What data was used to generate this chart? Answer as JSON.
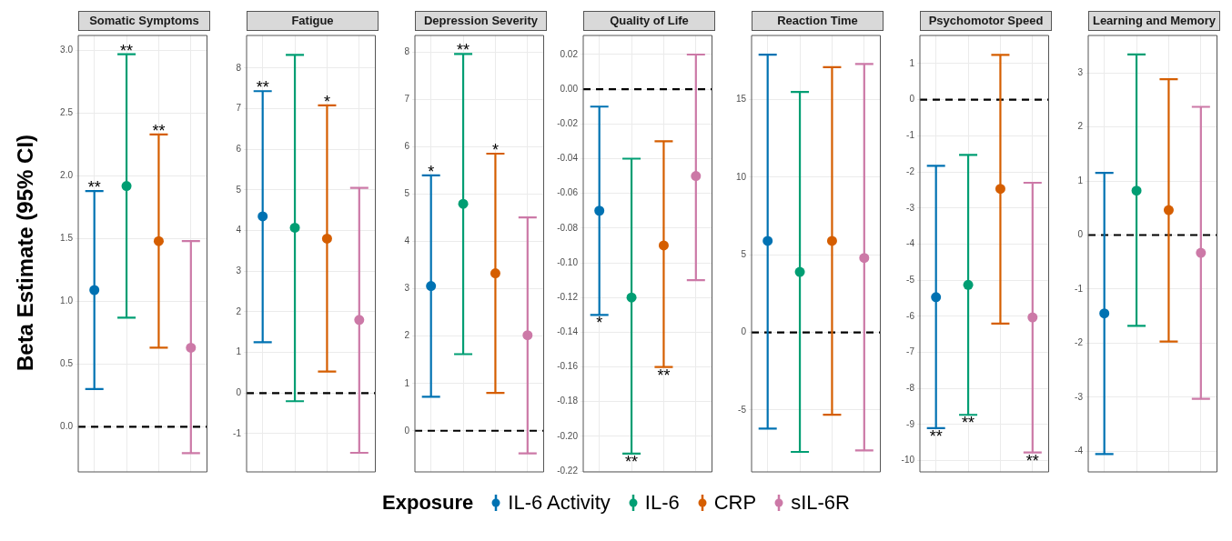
{
  "chart_data": [
    {
      "type": "scatter",
      "title": "Somatic Symptoms",
      "ylabel": "Beta Estimate (95% CI)",
      "legend": "bottom",
      "legend_title": "Exposure",
      "categories": [
        null,
        null,
        null,
        null
      ],
      "ylim": [
        -0.36,
        3.12
      ],
      "annotations": [
        {
          "text": "**",
          "y": 1.88
        },
        {
          "text": "**",
          "y": 2.97
        },
        {
          "text": "**",
          "y": 2.33
        }
      ],
      "yticks": [
        {
          "value": 0,
          "label": "0.0"
        },
        {
          "value": 0.5,
          "label": "0.5"
        },
        {
          "value": 1,
          "label": "1.0"
        },
        {
          "value": 1.5,
          "label": "1.5"
        },
        {
          "value": 2,
          "label": "2.0"
        },
        {
          "value": 2.5,
          "label": "2.5"
        },
        {
          "value": 3,
          "label": "3.0"
        }
      ],
      "grid": true,
      "marker": "circle",
      "ref_lines": [
        {
          "axis": "y",
          "value": 0,
          "color": "#000000",
          "line_style": "dashed"
        }
      ],
      "series": [
        {
          "name": "IL-6 Activity",
          "color": "#0072b2",
          "values": [
            1.09,
            null,
            null,
            null
          ],
          "errors": [
            [
              0.3,
              1.88
            ],
            null,
            null,
            null
          ]
        },
        {
          "name": "IL-6",
          "color": "#009e73",
          "values": [
            null,
            1.92,
            null,
            null
          ],
          "errors": [
            null,
            [
              0.87,
              2.97
            ],
            null,
            null
          ]
        },
        {
          "name": "CRP",
          "color": "#d55e00",
          "values": [
            null,
            null,
            1.48,
            null
          ],
          "errors": [
            null,
            null,
            [
              0.63,
              2.33
            ],
            null
          ]
        },
        {
          "name": "sIL-6R",
          "color": "#cc79a7",
          "values": [
            null,
            null,
            null,
            0.63
          ],
          "errors": [
            null,
            null,
            null,
            [
              -0.21,
              1.48
            ]
          ]
        }
      ]
    },
    {
      "type": "scatter",
      "title": "Fatigue",
      "categories": [
        null,
        null,
        null,
        null
      ],
      "ylim": [
        -1.94,
        8.8
      ],
      "yticks": [
        -1,
        0,
        1,
        2,
        3,
        4,
        5,
        6,
        7,
        8
      ],
      "annotations": [
        {
          "text": "**",
          "y": 7.43
        },
        {
          "text": "*",
          "y": 7.08
        }
      ],
      "grid": true,
      "marker": "circle",
      "ref_lines": [
        {
          "axis": "y",
          "value": 0,
          "color": "#000000",
          "line_style": "dashed"
        }
      ],
      "series": [
        {
          "color": "#0072b2",
          "values": [
            4.35,
            null,
            null,
            null
          ],
          "errors": [
            [
              1.25,
              7.43
            ],
            null,
            null,
            null
          ]
        },
        {
          "color": "#009e73",
          "values": [
            null,
            4.07,
            null,
            null
          ],
          "errors": [
            null,
            [
              -0.2,
              8.32
            ],
            null,
            null
          ]
        },
        {
          "color": "#d55e00",
          "values": [
            null,
            null,
            3.8,
            null
          ],
          "errors": [
            null,
            null,
            [
              0.53,
              7.08
            ],
            null
          ]
        },
        {
          "color": "#cc79a7",
          "values": [
            null,
            null,
            null,
            1.8
          ],
          "errors": [
            null,
            null,
            null,
            [
              -1.47,
              5.05
            ]
          ]
        }
      ]
    },
    {
      "type": "scatter",
      "title": "Depression Severity",
      "categories": [
        null,
        null,
        null,
        null
      ],
      "ylim": [
        -0.87,
        8.36
      ],
      "yticks": [
        0,
        1,
        2,
        3,
        4,
        5,
        6,
        7,
        8
      ],
      "annotations": [
        {
          "text": "*",
          "y": 5.4
        },
        {
          "text": "**",
          "y": 7.97
        },
        {
          "text": "*",
          "y": 5.86
        }
      ],
      "grid": true,
      "marker": "circle",
      "ref_lines": [
        {
          "axis": "y",
          "value": 0,
          "color": "#000000",
          "line_style": "dashed"
        }
      ],
      "series": [
        {
          "color": "#0072b2",
          "values": [
            3.06,
            null,
            null,
            null
          ],
          "errors": [
            [
              0.72,
              5.4
            ],
            null,
            null,
            null
          ]
        },
        {
          "color": "#009e73",
          "values": [
            null,
            4.8,
            null,
            null
          ],
          "errors": [
            null,
            [
              1.62,
              7.97
            ],
            null,
            null
          ]
        },
        {
          "color": "#d55e00",
          "values": [
            null,
            null,
            3.33,
            null
          ],
          "errors": [
            null,
            null,
            [
              0.8,
              5.86
            ],
            null
          ]
        },
        {
          "color": "#cc79a7",
          "values": [
            null,
            null,
            null,
            2.02
          ],
          "errors": [
            null,
            null,
            null,
            [
              -0.48,
              4.51
            ]
          ]
        }
      ]
    },
    {
      "type": "scatter",
      "title": "Quality of Life",
      "categories": [
        null,
        null,
        null,
        null
      ],
      "ylim": [
        -0.2205,
        0.031
      ],
      "annotations": [
        {
          "text": "*",
          "y": -0.13
        },
        {
          "text": "**",
          "y": -0.21
        },
        {
          "text": "**",
          "y": -0.16
        }
      ],
      "yticks": [
        {
          "value": -0.22,
          "label": "-0.22"
        },
        {
          "value": -0.2,
          "label": "-0.20"
        },
        {
          "value": -0.18,
          "label": "-0.18"
        },
        {
          "value": -0.16,
          "label": "-0.16"
        },
        {
          "value": -0.14,
          "label": "-0.14"
        },
        {
          "value": -0.12,
          "label": "-0.12"
        },
        {
          "value": -0.1,
          "label": "-0.10"
        },
        {
          "value": -0.08,
          "label": "-0.08"
        },
        {
          "value": -0.06,
          "label": "-0.06"
        },
        {
          "value": -0.04,
          "label": "-0.04"
        },
        {
          "value": -0.02,
          "label": "-0.02"
        },
        {
          "value": 0,
          "label": "0.00"
        },
        {
          "value": 0.02,
          "label": "0.02"
        }
      ],
      "grid": true,
      "marker": "circle",
      "ref_lines": [
        {
          "axis": "y",
          "value": 0,
          "color": "#000000",
          "line_style": "dashed"
        }
      ],
      "series": [
        {
          "color": "#0072b2",
          "values": [
            -0.07,
            null,
            null,
            null
          ],
          "errors": [
            [
              -0.13,
              -0.01
            ],
            null,
            null,
            null
          ]
        },
        {
          "color": "#009e73",
          "values": [
            null,
            -0.12,
            null,
            null
          ],
          "errors": [
            null,
            [
              -0.21,
              -0.04
            ],
            null,
            null
          ]
        },
        {
          "color": "#d55e00",
          "values": [
            null,
            null,
            -0.09,
            null
          ],
          "errors": [
            null,
            null,
            [
              -0.16,
              -0.03
            ],
            null
          ]
        },
        {
          "color": "#cc79a7",
          "values": [
            null,
            null,
            null,
            -0.05
          ],
          "errors": [
            null,
            null,
            null,
            [
              -0.11,
              0.02
            ]
          ]
        }
      ]
    },
    {
      "type": "scatter",
      "title": "Reaction Time",
      "categories": [
        null,
        null,
        null,
        null
      ],
      "ylim": [
        -8.99,
        19.14
      ],
      "yticks": [
        -5,
        0,
        5,
        10,
        15
      ],
      "grid": true,
      "marker": "circle",
      "ref_lines": [
        {
          "axis": "y",
          "value": 0,
          "color": "#000000",
          "line_style": "dashed"
        }
      ],
      "series": [
        {
          "color": "#0072b2",
          "values": [
            5.9,
            null,
            null,
            null
          ],
          "errors": [
            [
              -6.2,
              17.9
            ],
            null,
            null,
            null
          ]
        },
        {
          "color": "#009e73",
          "values": [
            null,
            3.9,
            null,
            null
          ],
          "errors": [
            null,
            [
              -7.7,
              15.5
            ],
            null,
            null
          ]
        },
        {
          "color": "#d55e00",
          "values": [
            null,
            null,
            5.9,
            null
          ],
          "errors": [
            null,
            null,
            [
              -5.3,
              17.1
            ],
            null
          ]
        },
        {
          "color": "#cc79a7",
          "values": [
            null,
            null,
            null,
            4.8
          ],
          "errors": [
            null,
            null,
            null,
            [
              -7.6,
              17.3
            ]
          ]
        }
      ]
    },
    {
      "type": "scatter",
      "title": "Psychomotor Speed",
      "categories": [
        null,
        null,
        null,
        null
      ],
      "ylim": [
        -10.31,
        1.78
      ],
      "yticks": [
        -10,
        -9,
        -8,
        -7,
        -6,
        -5,
        -4,
        -3,
        -2,
        -1,
        0,
        1
      ],
      "annotations": [
        {
          "text": "**",
          "y": -9.1
        },
        {
          "text": "**",
          "y": -8.73
        },
        {
          "text": "**",
          "y": -9.77
        }
      ],
      "grid": true,
      "marker": "circle",
      "ref_lines": [
        {
          "axis": "y",
          "value": 0,
          "color": "#000000",
          "line_style": "dashed"
        }
      ],
      "series": [
        {
          "color": "#0072b2",
          "values": [
            -5.47,
            null,
            null,
            null
          ],
          "errors": [
            [
              -9.1,
              -1.83
            ],
            null,
            null,
            null
          ]
        },
        {
          "color": "#009e73",
          "values": [
            null,
            -5.13,
            null,
            null
          ],
          "errors": [
            null,
            [
              -8.73,
              -1.53
            ],
            null,
            null
          ]
        },
        {
          "color": "#d55e00",
          "values": [
            null,
            null,
            -2.47,
            null
          ],
          "errors": [
            null,
            null,
            [
              -6.2,
              1.24
            ],
            null
          ]
        },
        {
          "color": "#cc79a7",
          "values": [
            null,
            null,
            null,
            -6.03
          ],
          "errors": [
            null,
            null,
            null,
            [
              -9.77,
              -2.3
            ]
          ]
        }
      ]
    },
    {
      "type": "scatter",
      "title": "Learning and Memory",
      "categories": [
        null,
        null,
        null,
        null
      ],
      "ylim": [
        -4.38,
        3.69
      ],
      "yticks": [
        -4,
        -3,
        -2,
        -1,
        0,
        1,
        2,
        3
      ],
      "grid": true,
      "marker": "circle",
      "ref_lines": [
        {
          "axis": "y",
          "value": 0,
          "color": "#000000",
          "line_style": "dashed"
        }
      ],
      "series": [
        {
          "color": "#0072b2",
          "values": [
            -1.45,
            null,
            null,
            null
          ],
          "errors": [
            [
              -4.05,
              1.15
            ],
            null,
            null,
            null
          ]
        },
        {
          "color": "#009e73",
          "values": [
            null,
            0.82,
            null,
            null
          ],
          "errors": [
            null,
            [
              -1.68,
              3.34
            ],
            null,
            null
          ]
        },
        {
          "color": "#d55e00",
          "values": [
            null,
            null,
            0.46,
            null
          ],
          "errors": [
            null,
            null,
            [
              -1.97,
              2.88
            ],
            null
          ]
        },
        {
          "color": "#cc79a7",
          "values": [
            null,
            null,
            null,
            -0.33
          ],
          "errors": [
            null,
            null,
            null,
            [
              -3.03,
              2.37
            ]
          ]
        }
      ]
    }
  ]
}
